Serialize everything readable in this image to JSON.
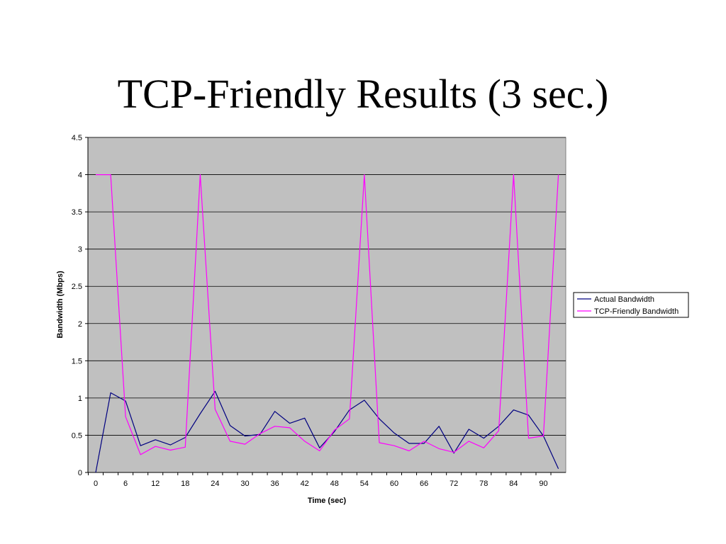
{
  "slide": {
    "title": "TCP-Friendly Results (3 sec.)"
  },
  "chart_data": {
    "type": "line",
    "xlabel": "Time (sec)",
    "ylabel": "Bandwidth (Mbps)",
    "ylim": [
      0,
      4.5
    ],
    "yticks": [
      0,
      0.5,
      1,
      1.5,
      2,
      2.5,
      3,
      3.5,
      4,
      4.5
    ],
    "y_tick_labels": [
      "0",
      "0.5",
      "1",
      "1.5",
      "2",
      "2.5",
      "3",
      "3.5",
      "4",
      "4.5"
    ],
    "x_tick_labels": [
      "0",
      "6",
      "12",
      "18",
      "24",
      "30",
      "36",
      "42",
      "48",
      "54",
      "60",
      "66",
      "72",
      "78",
      "84",
      "90"
    ],
    "x": [
      0,
      3,
      6,
      9,
      12,
      15,
      18,
      21,
      24,
      27,
      30,
      33,
      36,
      39,
      42,
      45,
      48,
      51,
      54,
      57,
      60,
      63,
      66,
      69,
      72,
      75,
      78,
      81,
      84,
      87,
      90,
      93
    ],
    "grid": true,
    "legend_position": "right",
    "plot_background": "#c0c0c0",
    "series": [
      {
        "name": "Actual Bandwidth",
        "color": "#000080",
        "values": [
          0,
          1.07,
          0.96,
          0.36,
          0.44,
          0.37,
          0.47,
          0.79,
          1.09,
          0.63,
          0.49,
          0.51,
          0.82,
          0.66,
          0.73,
          0.33,
          0.55,
          0.84,
          0.97,
          0.72,
          0.53,
          0.39,
          0.39,
          0.62,
          0.26,
          0.58,
          0.46,
          0.62,
          0.84,
          0.77,
          0.49,
          0.05
        ]
      },
      {
        "name": "TCP-Friendly Bandwidth",
        "color": "#ff00ff",
        "values": [
          4.0,
          4.0,
          0.75,
          0.24,
          0.35,
          0.3,
          0.34,
          4.0,
          0.85,
          0.42,
          0.38,
          0.52,
          0.62,
          0.6,
          0.42,
          0.29,
          0.57,
          0.72,
          4.0,
          0.4,
          0.36,
          0.29,
          0.42,
          0.32,
          0.27,
          0.42,
          0.33,
          0.56,
          4.0,
          0.46,
          0.49,
          4.0
        ]
      }
    ]
  }
}
